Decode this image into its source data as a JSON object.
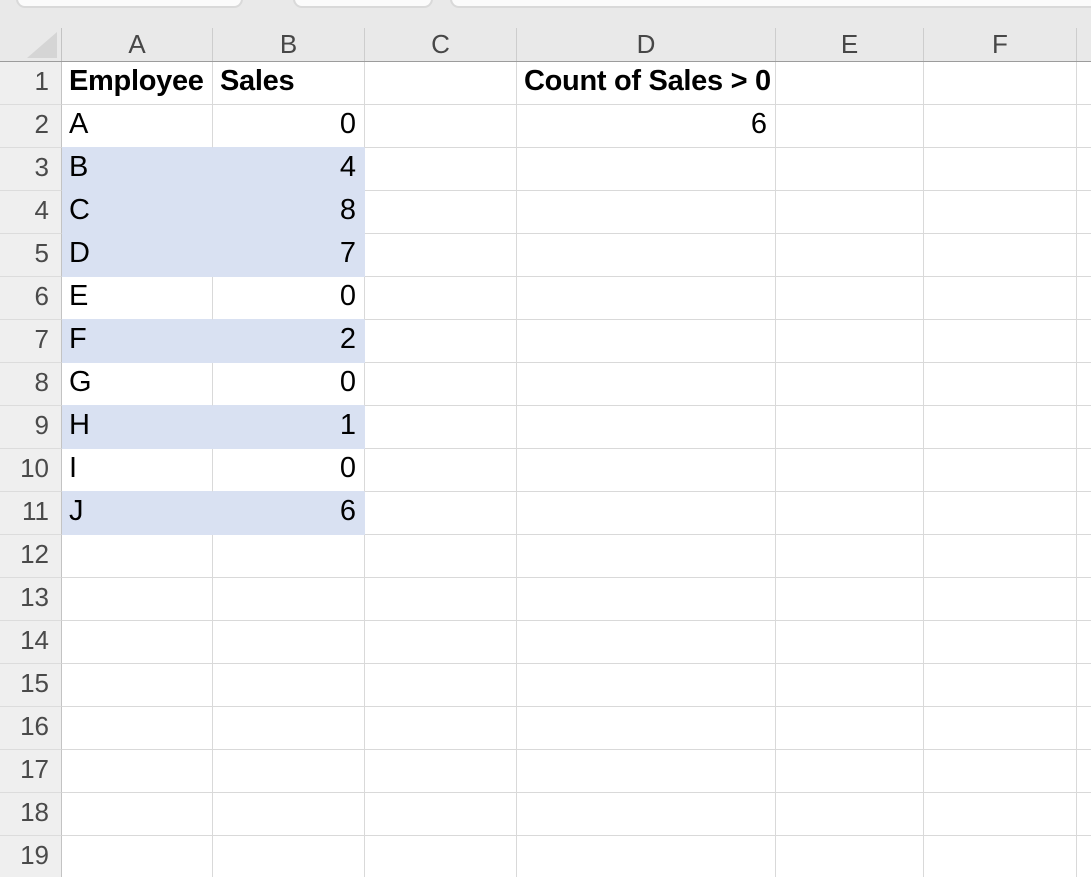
{
  "sheet": {
    "column_letters": [
      "A",
      "B",
      "C",
      "D",
      "E",
      "F"
    ],
    "row_numbers": [
      "1",
      "2",
      "3",
      "4",
      "5",
      "6",
      "7",
      "8",
      "9",
      "10",
      "11",
      "12",
      "13",
      "14",
      "15",
      "16",
      "17",
      "18",
      "19"
    ],
    "cells": {
      "A1": "Employee",
      "B1": "Sales",
      "D1": "Count of Sales > 0",
      "A2": "A",
      "B2": "0",
      "D2": "6",
      "A3": "B",
      "B3": "4",
      "A4": "C",
      "B4": "8",
      "A5": "D",
      "B5": "7",
      "A6": "E",
      "B6": "0",
      "A7": "F",
      "B7": "2",
      "A8": "G",
      "B8": "0",
      "A9": "H",
      "B9": "1",
      "A10": "I",
      "B10": "0",
      "A11": "J",
      "B11": "6"
    },
    "highlighted_rows": [
      3,
      4,
      5,
      7,
      9,
      11
    ],
    "icons": {
      "select_all": "select-all-triangle"
    },
    "colors": {
      "highlight_fill": "#D9E1F2",
      "header_bg": "#E9E9E9",
      "gridline": "#D9D9D9"
    }
  }
}
